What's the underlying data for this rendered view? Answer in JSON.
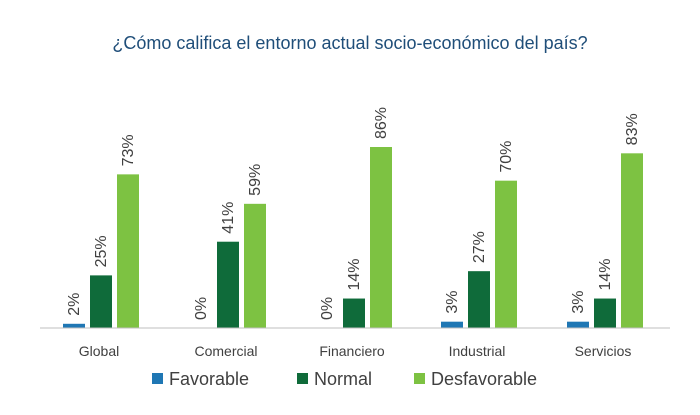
{
  "chart_data": {
    "type": "bar",
    "title": "¿Cómo califica el entorno actual socio-económico del país?",
    "categories": [
      "Global",
      "Comercial",
      "Financiero",
      "Industrial",
      "Servicios"
    ],
    "series": [
      {
        "name": "Favorable",
        "color": "#1f77b4",
        "values": [
          2,
          0,
          0,
          3,
          3
        ],
        "labels": [
          "2%",
          "0%",
          "0%",
          "3%",
          "3%"
        ]
      },
      {
        "name": "Normal",
        "color": "#0f6b3a",
        "values": [
          25,
          41,
          14,
          27,
          14
        ],
        "labels": [
          "25%",
          "41%",
          "14%",
          "27%",
          "14%"
        ]
      },
      {
        "name": "Desfavorable",
        "color": "#7dc242",
        "values": [
          73,
          59,
          86,
          70,
          83
        ],
        "labels": [
          "73%",
          "59%",
          "86%",
          "70%",
          "83%"
        ]
      }
    ],
    "ylim": [
      0,
      100
    ],
    "grid": false,
    "legend": "bottom"
  }
}
